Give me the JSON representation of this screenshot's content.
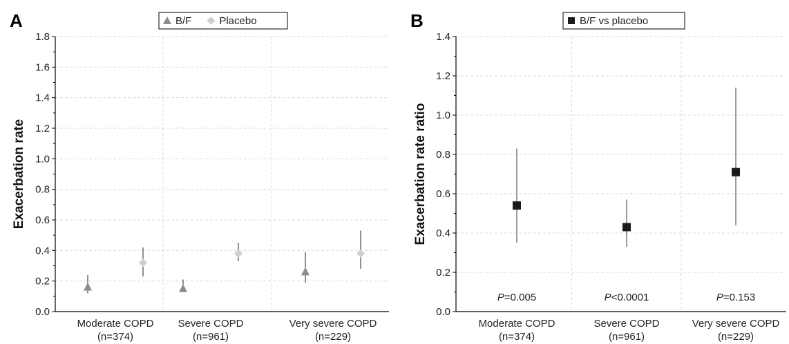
{
  "chart_data": [
    {
      "type": "scatter",
      "panel": "A",
      "ylabel": "Exacerbation rate",
      "xlabel": "",
      "ylim": [
        0,
        1.8
      ],
      "yticks": [
        "0.0",
        "0.2",
        "0.4",
        "0.6",
        "0.8",
        "1.0",
        "1.2",
        "1.4",
        "1.6",
        "1.8"
      ],
      "categories": [
        {
          "name": "Moderate COPD",
          "n": "(n=374)"
        },
        {
          "name": "Severe COPD",
          "n": "(n=961)"
        },
        {
          "name": "Very severe COPD",
          "n": "(n=229)"
        }
      ],
      "grid": true,
      "legend_position": "top-center",
      "series": [
        {
          "name": "B/F",
          "marker": "triangle",
          "color": "#8c8c8c",
          "values": [
            0.16,
            0.15,
            0.26
          ],
          "lower": [
            0.12,
            0.13,
            0.19
          ],
          "upper": [
            0.24,
            0.21,
            0.39
          ]
        },
        {
          "name": "Placebo",
          "marker": "diamond",
          "color": "#cfcfcf",
          "values": [
            0.32,
            0.38,
            0.38
          ],
          "lower": [
            0.23,
            0.33,
            0.28
          ],
          "upper": [
            0.42,
            0.45,
            0.53
          ]
        }
      ]
    },
    {
      "type": "scatter",
      "panel": "B",
      "ylabel": "Exacerbation rate ratio",
      "xlabel": "",
      "ylim": [
        0,
        1.4
      ],
      "yticks": [
        "0.0",
        "0.2",
        "0.4",
        "0.6",
        "0.8",
        "1.0",
        "1.2",
        "1.4"
      ],
      "categories": [
        {
          "name": "Moderate COPD",
          "n": "(n=374)"
        },
        {
          "name": "Severe COPD",
          "n": "(n=961)"
        },
        {
          "name": "Very severe COPD",
          "n": "(n=229)"
        }
      ],
      "grid": true,
      "legend_position": "top-center",
      "series": [
        {
          "name": "B/F vs placebo",
          "marker": "square",
          "color": "#1a1a1a",
          "values": [
            0.54,
            0.43,
            0.71
          ],
          "lower": [
            0.35,
            0.33,
            0.44
          ],
          "upper": [
            0.83,
            0.57,
            1.14
          ]
        }
      ],
      "pvalues": [
        {
          "italic": "P",
          "rest": "=0.005"
        },
        {
          "italic": "P",
          "rest": "<0.0001"
        },
        {
          "italic": "P",
          "rest": "=0.153"
        }
      ]
    }
  ]
}
